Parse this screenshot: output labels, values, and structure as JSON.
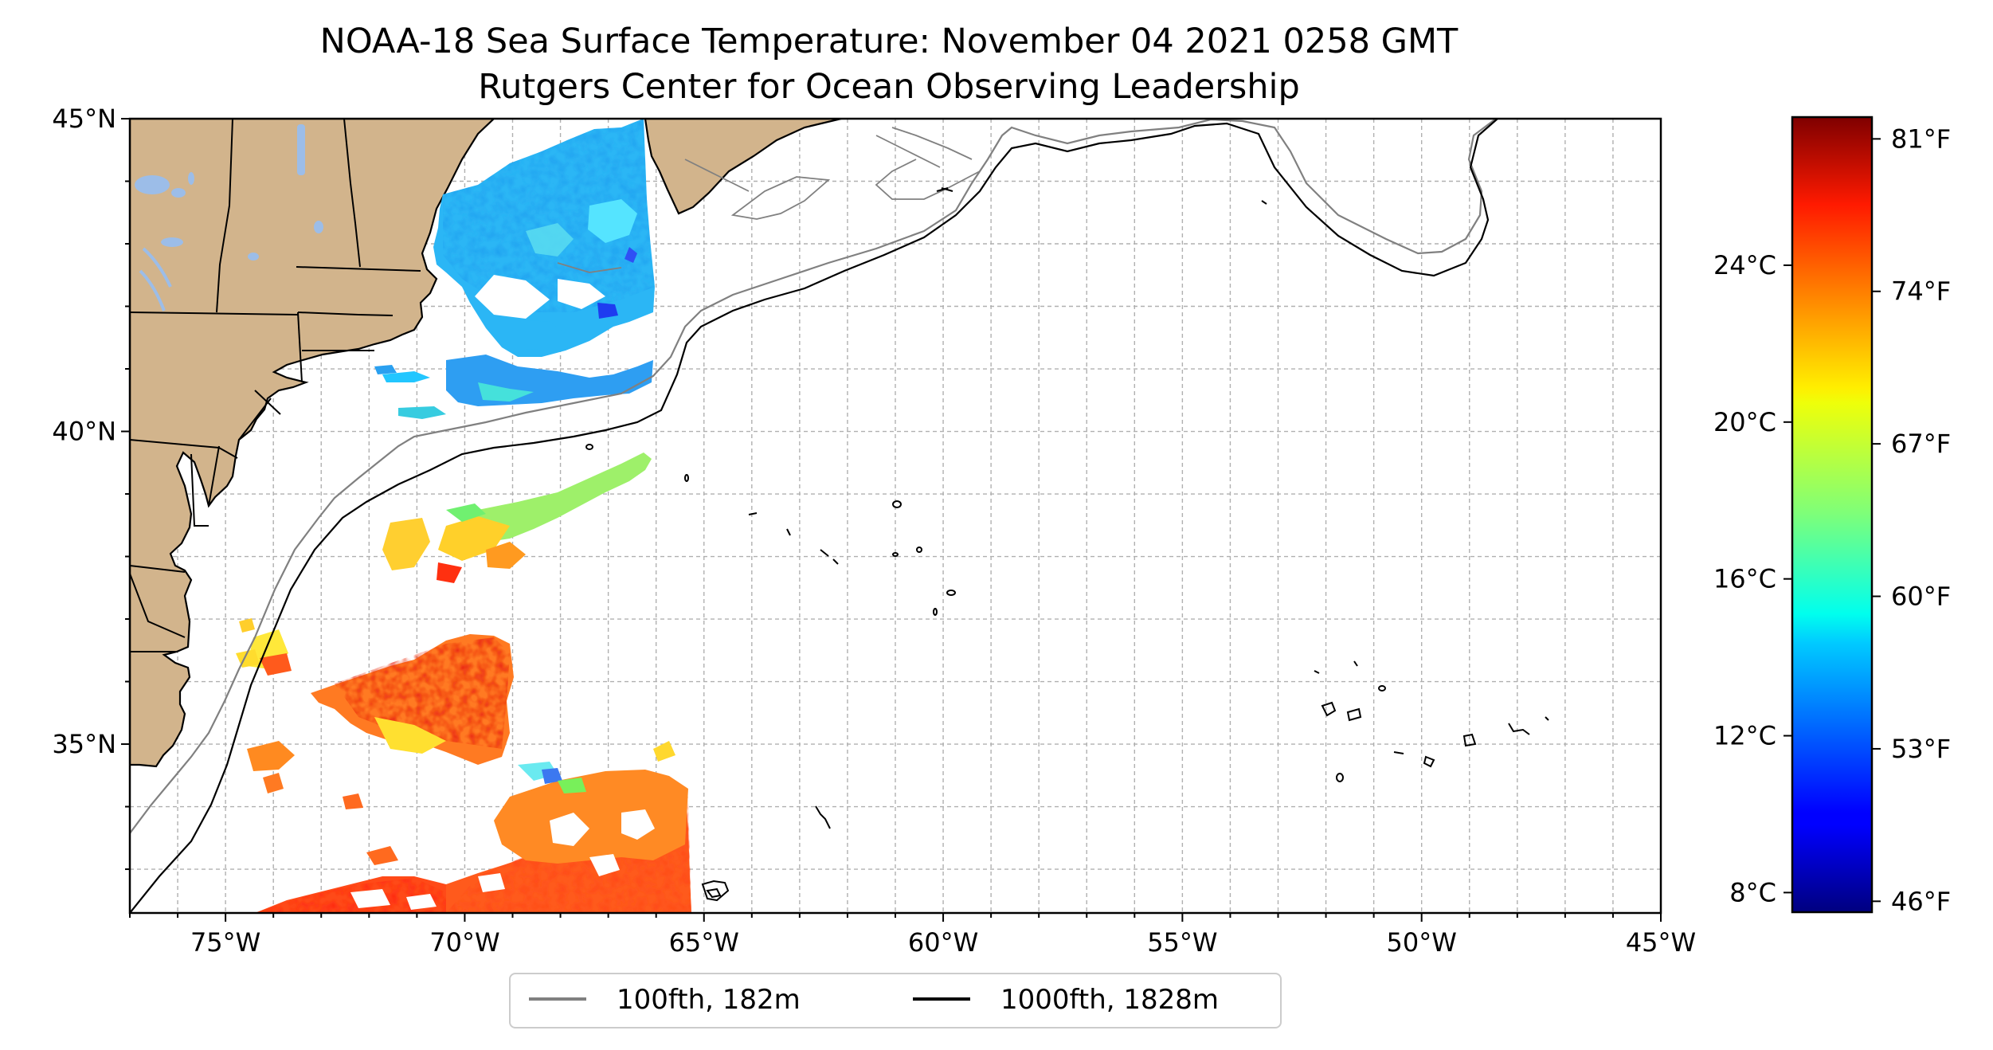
{
  "figure": {
    "title_line1": "NOAA-18 Sea Surface Temperature: November 04 2021 0258 GMT",
    "title_line2": "Rutgers Center for Ocean Observing Leadership"
  },
  "map": {
    "extent": {
      "lon_min": -77,
      "lon_max": -45,
      "lat_min": 32.3,
      "lat_max": 45
    },
    "x_ticks": [
      {
        "lon": -75,
        "label": "75°W"
      },
      {
        "lon": -70,
        "label": "70°W"
      },
      {
        "lon": -65,
        "label": "65°W"
      },
      {
        "lon": -60,
        "label": "60°W"
      },
      {
        "lon": -55,
        "label": "55°W"
      },
      {
        "lon": -50,
        "label": "50°W"
      },
      {
        "lon": -45,
        "label": "45°W"
      }
    ],
    "y_ticks": [
      {
        "lat": 45,
        "label": "45°N"
      },
      {
        "lat": 40,
        "label": "40°N"
      },
      {
        "lat": 35,
        "label": "35°N"
      }
    ],
    "gridlines": true,
    "land_color": "#d2b48c",
    "lake_color": "#9cbde8"
  },
  "colorbar": {
    "colormap": "jet",
    "range_f": [
      45.5,
      82
    ],
    "celsius_ticks": [
      {
        "value_c": 8,
        "label": "8°C"
      },
      {
        "value_c": 12,
        "label": "12°C"
      },
      {
        "value_c": 16,
        "label": "16°C"
      },
      {
        "value_c": 20,
        "label": "20°C"
      },
      {
        "value_c": 24,
        "label": "24°C"
      }
    ],
    "fahrenheit_ticks": [
      {
        "value_f": 46,
        "label": "46°F"
      },
      {
        "value_f": 53,
        "label": "53°F"
      },
      {
        "value_f": 60,
        "label": "60°F"
      },
      {
        "value_f": 67,
        "label": "67°F"
      },
      {
        "value_f": 74,
        "label": "74°F"
      },
      {
        "value_f": 81,
        "label": "81°F"
      }
    ]
  },
  "legend": {
    "location": "lower-center",
    "items": [
      {
        "label": "100fth, 182m",
        "color": "#808080"
      },
      {
        "label": "1000fth, 1828m",
        "color": "#000000"
      }
    ]
  }
}
